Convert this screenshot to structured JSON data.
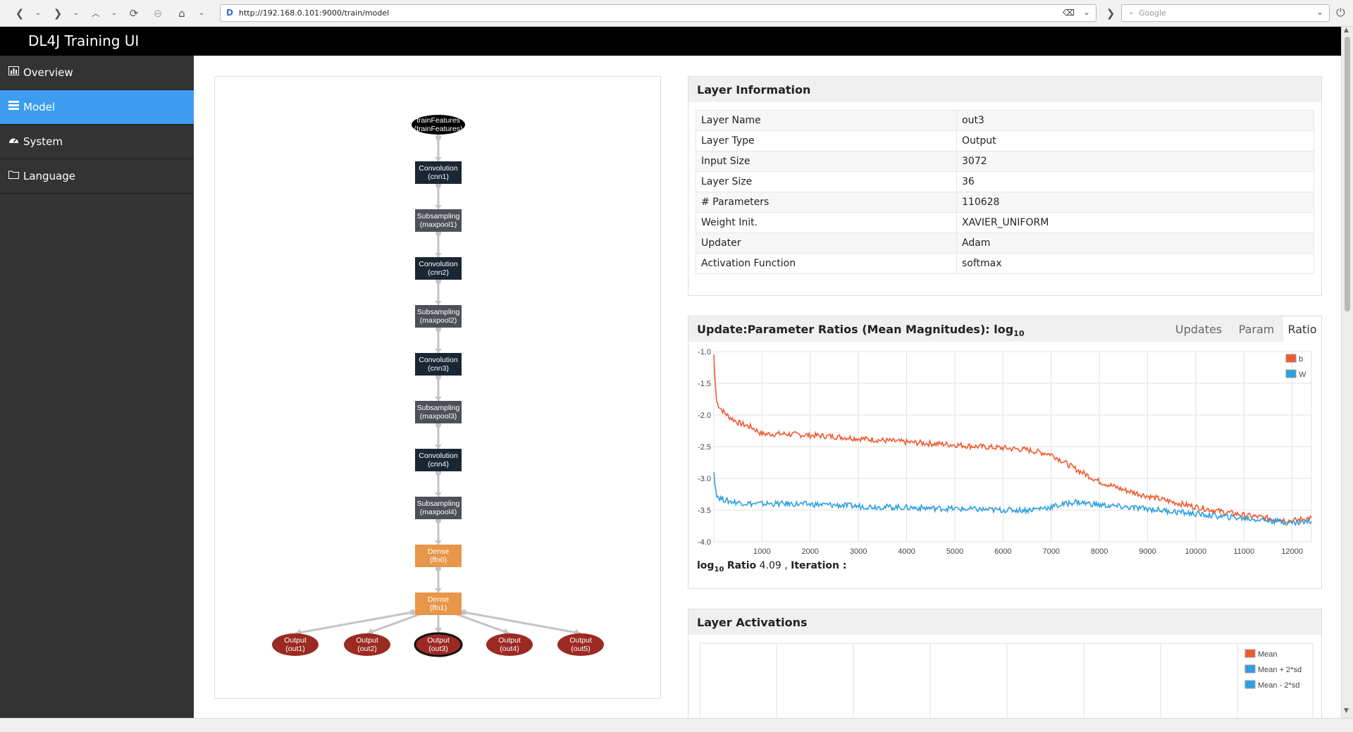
{
  "browser": {
    "url": "http://192.168.0.101:9000/train/model",
    "search_placeholder": "Google",
    "favicon": "D"
  },
  "app": {
    "title": "DL4J Training UI"
  },
  "sidebar": {
    "items": [
      {
        "label": "Overview",
        "icon": "bar-chart-icon",
        "glyph": "📊"
      },
      {
        "label": "Model",
        "icon": "list-icon",
        "glyph": "☰"
      },
      {
        "label": "System",
        "icon": "dashboard-icon",
        "glyph": "⚙"
      },
      {
        "label": "Language",
        "icon": "folder-icon",
        "glyph": "🗀"
      }
    ]
  },
  "graph": {
    "nodes": [
      {
        "line1": "trainFeatures",
        "line2": "(trainFeatures)",
        "kind": "input"
      },
      {
        "line1": "Convolution",
        "line2": "(cnn1)",
        "kind": "conv"
      },
      {
        "line1": "Subsampling",
        "line2": "(maxpool1)",
        "kind": "pool"
      },
      {
        "line1": "Convolution",
        "line2": "(cnn2)",
        "kind": "conv"
      },
      {
        "line1": "Subsampling",
        "line2": "(maxpool2)",
        "kind": "pool"
      },
      {
        "line1": "Convolution",
        "line2": "(cnn3)",
        "kind": "conv"
      },
      {
        "line1": "Subsampling",
        "line2": "(maxpool3)",
        "kind": "pool"
      },
      {
        "line1": "Convolution",
        "line2": "(cnn4)",
        "kind": "conv"
      },
      {
        "line1": "Subsampling",
        "line2": "(maxpool4)",
        "kind": "pool"
      },
      {
        "line1": "Dense",
        "line2": "(ffn0)",
        "kind": "dense"
      },
      {
        "line1": "Dense",
        "line2": "(ffn1)",
        "kind": "dense"
      }
    ],
    "outputs": [
      {
        "line1": "Output",
        "line2": "(out1)"
      },
      {
        "line1": "Output",
        "line2": "(out2)"
      },
      {
        "line1": "Output",
        "line2": "(out3)"
      },
      {
        "line1": "Output",
        "line2": "(out4)"
      },
      {
        "line1": "Output",
        "line2": "(out5)"
      }
    ],
    "selected_output": 2,
    "colors": {
      "input": "#000000",
      "conv": "#1b2633",
      "pool": "#4c5158",
      "dense": "#e8974a",
      "output": "#9b2a22",
      "edge": "#c4c4c4"
    }
  },
  "layer_info": {
    "title": "Layer Information",
    "rows": [
      {
        "key": "Layer Name",
        "value": "out3"
      },
      {
        "key": "Layer Type",
        "value": "Output"
      },
      {
        "key": "Input Size",
        "value": "3072"
      },
      {
        "key": "Layer Size",
        "value": "36"
      },
      {
        "key": "# Parameters",
        "value": "110628"
      },
      {
        "key": "Weight Init.",
        "value": "XAVIER_UNIFORM"
      },
      {
        "key": "Updater",
        "value": "Adam"
      },
      {
        "key": "Activation Function",
        "value": "softmax"
      }
    ]
  },
  "ratio_panel": {
    "title": "Update:Parameter Ratios (Mean Magnitudes): log",
    "title_sub": "10",
    "tabs": [
      "Updates",
      "Param",
      "Ratio"
    ],
    "active_tab": 2,
    "readout_prefix": "log",
    "readout_sub": "10",
    "readout_label": "Ratio",
    "readout_value": "4.09",
    "readout_iter_label": "Iteration :"
  },
  "chart_data": {
    "type": "line",
    "xlim": [
      0,
      12400
    ],
    "ylim": [
      -4.0,
      -1.0
    ],
    "x_ticks": [
      1000,
      2000,
      3000,
      4000,
      5000,
      6000,
      7000,
      8000,
      9000,
      10000,
      11000,
      12000
    ],
    "y_ticks": [
      -1.0,
      -1.5,
      -2.0,
      -2.5,
      -3.0,
      -3.5,
      -4.0
    ],
    "grid": true,
    "legend": "top-right",
    "series": [
      {
        "name": "b",
        "color": "#f05a30",
        "x": [
          0,
          20,
          60,
          100,
          200,
          300,
          500,
          800,
          1000,
          1500,
          2000,
          2500,
          3000,
          3500,
          4000,
          4500,
          5000,
          5500,
          6000,
          6500,
          7000,
          7500,
          8000,
          8500,
          9000,
          9500,
          10000,
          10500,
          11000,
          11500,
          12000,
          12400
        ],
        "y": [
          -1.05,
          -1.4,
          -1.8,
          -1.85,
          -1.95,
          -2.02,
          -2.12,
          -2.2,
          -2.3,
          -2.3,
          -2.32,
          -2.34,
          -2.37,
          -2.4,
          -2.43,
          -2.45,
          -2.47,
          -2.5,
          -2.52,
          -2.55,
          -2.62,
          -2.85,
          -3.05,
          -3.18,
          -3.28,
          -3.37,
          -3.45,
          -3.52,
          -3.58,
          -3.63,
          -3.67,
          -3.62
        ]
      },
      {
        "name": "W",
        "color": "#2e9fe0",
        "x": [
          0,
          20,
          60,
          100,
          200,
          300,
          500,
          800,
          1000,
          1500,
          2000,
          2500,
          3000,
          3500,
          4000,
          4500,
          5000,
          5500,
          6000,
          6500,
          7000,
          7500,
          8000,
          8500,
          9000,
          9500,
          10000,
          10500,
          11000,
          11500,
          12000,
          12400
        ],
        "y": [
          -2.9,
          -3.1,
          -3.25,
          -3.3,
          -3.33,
          -3.36,
          -3.38,
          -3.4,
          -3.4,
          -3.4,
          -3.41,
          -3.42,
          -3.44,
          -3.45,
          -3.46,
          -3.47,
          -3.48,
          -3.49,
          -3.5,
          -3.5,
          -3.45,
          -3.37,
          -3.42,
          -3.45,
          -3.48,
          -3.52,
          -3.56,
          -3.6,
          -3.63,
          -3.66,
          -3.7,
          -3.68
        ]
      }
    ]
  },
  "activations": {
    "title": "Layer Activations",
    "legend": [
      {
        "label": "Mean",
        "color": "#f05a30"
      },
      {
        "label": "Mean + 2*sd",
        "color": "#2e9fe0"
      },
      {
        "label": "Mean - 2*sd",
        "color": "#2e9fe0"
      }
    ]
  }
}
